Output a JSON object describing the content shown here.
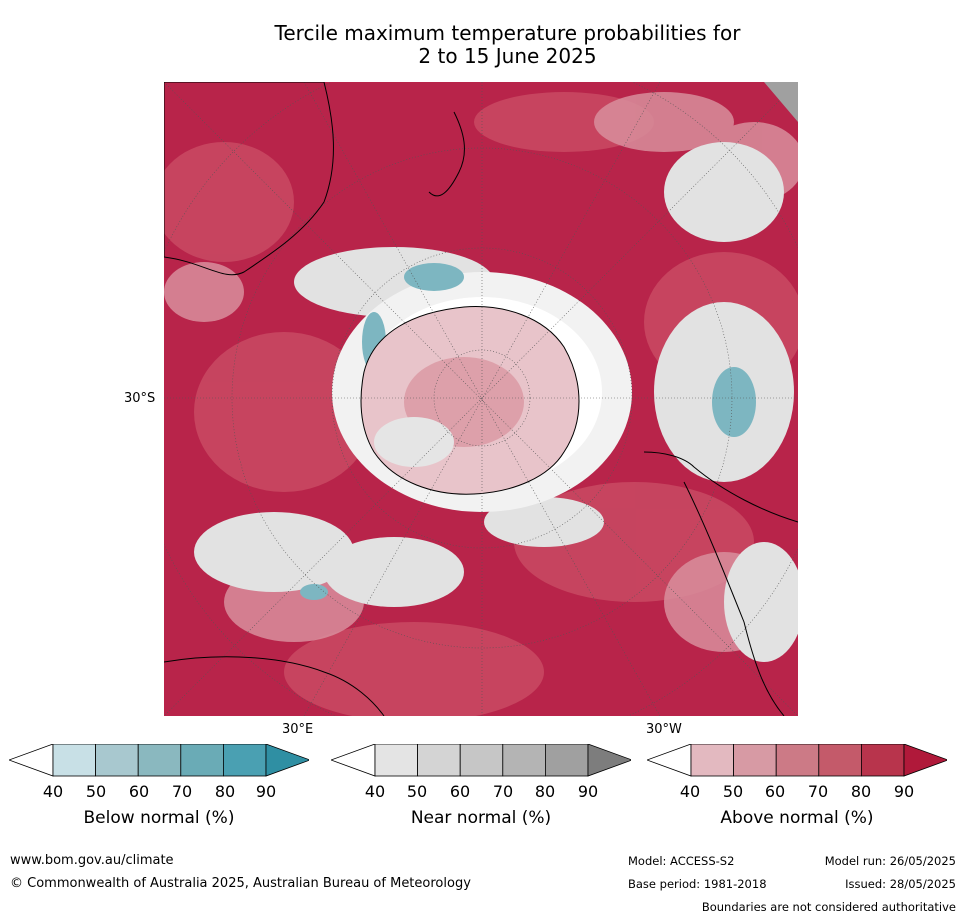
{
  "title": "Tercile maximum temperature probabilities for\n2 to 15 June 2025",
  "map": {
    "projection": "south-polar-stereographic",
    "lat_label": "30°S",
    "lon_label_left": "30°E",
    "lon_label_right": "30°W"
  },
  "colorbars": [
    {
      "title": "Below normal (%)",
      "ticks": [
        "40",
        "50",
        "60",
        "70",
        "80",
        "90"
      ],
      "colors": [
        "#ffffff",
        "#c8e0e6",
        "#a8c8cf",
        "#8ab8bf",
        "#6aabb6",
        "#4aa0b2",
        "#2f8fa3"
      ]
    },
    {
      "title": "Near normal (%)",
      "ticks": [
        "40",
        "50",
        "60",
        "70",
        "80",
        "90"
      ],
      "colors": [
        "#ffffff",
        "#e4e4e4",
        "#d4d4d4",
        "#c6c6c6",
        "#b4b4b4",
        "#a0a0a0",
        "#7d7d7d"
      ]
    },
    {
      "title": "Above normal (%)",
      "ticks": [
        "40",
        "50",
        "60",
        "70",
        "80",
        "90"
      ],
      "colors": [
        "#ffffff",
        "#e3b9c0",
        "#d79aa4",
        "#cc7a86",
        "#c45a6a",
        "#b8344c",
        "#b0193a"
      ]
    }
  ],
  "footer": {
    "website": "www.bom.gov.au/climate",
    "copyright": "© Commonwealth of Australia 2025, Australian Bureau of Meteorology",
    "model": "Model: ACCESS-S2",
    "model_run": "Model run: 26/05/2025",
    "base_period": "Base period: 1981-2018",
    "issued": "Issued: 28/05/2025",
    "disclaimer": "Boundaries are not considered authoritative"
  }
}
